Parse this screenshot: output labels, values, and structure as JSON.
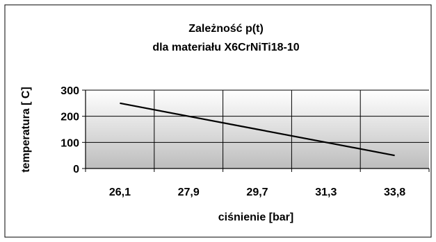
{
  "chart_data": {
    "type": "line",
    "title_line1": "Zależność p(t)",
    "title_line2": "dla materiału X6CrNiTi18-10",
    "xlabel": "ciśnienie [bar]",
    "ylabel": "temperatura [ C]",
    "categories": [
      "26,1",
      "27,9",
      "29,7",
      "31,3",
      "33,8"
    ],
    "series": [
      {
        "values": [
          250,
          200,
          150,
          100,
          50
        ]
      }
    ],
    "ylim": [
      0,
      300
    ],
    "yticks": [
      0,
      100,
      200,
      300
    ],
    "ytick_labels": [
      "0",
      "100",
      "200",
      "300"
    ],
    "grid": true,
    "legend": "none",
    "colors": {
      "line": "#000000",
      "plot_bg_top": "#ffffff",
      "plot_bg_bottom": "#bdbdbd"
    }
  }
}
